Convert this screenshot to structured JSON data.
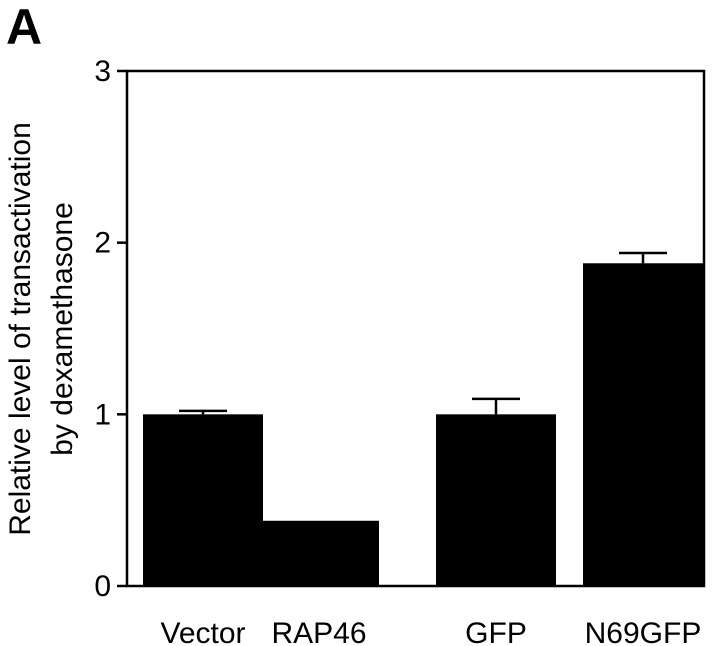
{
  "panel_label": "A",
  "chart_data": {
    "type": "bar",
    "categories": [
      "Vector",
      "RAP46",
      "GFP",
      "N69GFP"
    ],
    "values": [
      1.0,
      0.38,
      1.0,
      1.88
    ],
    "errors": [
      0.02,
      0.0,
      0.09,
      0.06
    ],
    "ylabel_line1": "Relative level of transactivation",
    "ylabel_line2": "by dexamethasone",
    "xlabel": "",
    "ylim": [
      0,
      3
    ],
    "yticks": [
      "0",
      "1",
      "2",
      "3"
    ],
    "bar_color": "#000000",
    "grid": false
  }
}
